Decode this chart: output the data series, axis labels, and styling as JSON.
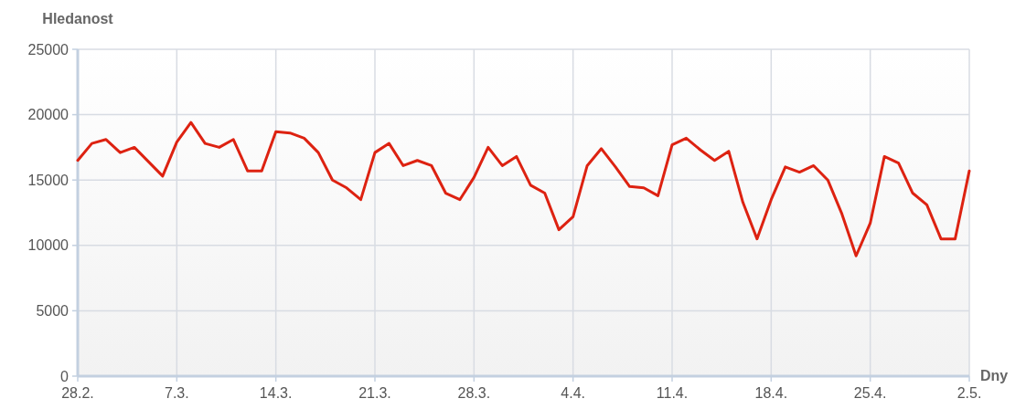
{
  "chart_data": {
    "type": "line",
    "ylabel": "Hledanost",
    "xlabel": "Dny",
    "categories": [
      "28.2.",
      null,
      null,
      null,
      null,
      null,
      null,
      "7.3.",
      null,
      null,
      null,
      null,
      null,
      null,
      "14.3.",
      null,
      null,
      null,
      null,
      null,
      null,
      "21.3.",
      null,
      null,
      null,
      null,
      null,
      null,
      "28.3.",
      null,
      null,
      null,
      null,
      null,
      null,
      "4.4.",
      null,
      null,
      null,
      null,
      null,
      null,
      "11.4.",
      null,
      null,
      null,
      null,
      null,
      null,
      "18.4.",
      null,
      null,
      null,
      null,
      null,
      null,
      "25.4.",
      null,
      null,
      null,
      null,
      null,
      null,
      "2.5."
    ],
    "series": [
      {
        "color": "#dd2211",
        "values": [
          16500,
          17800,
          18100,
          17100,
          17500,
          16400,
          15300,
          17900,
          19400,
          17800,
          17500,
          18100,
          15700,
          15700,
          18700,
          18600,
          18200,
          17100,
          15000,
          14400,
          13500,
          17100,
          17800,
          16100,
          16500,
          16100,
          14000,
          13500,
          15200,
          17500,
          16100,
          16800,
          14600,
          14000,
          11200,
          12200,
          16100,
          17400,
          16000,
          14500,
          14400,
          13800,
          17700,
          18200,
          17300,
          16500,
          17200,
          13300,
          10500,
          13500,
          16000,
          15600,
          16100,
          15000,
          12400,
          9200,
          11700,
          16800,
          16300,
          14000,
          13100,
          10500,
          10500,
          15700
        ]
      }
    ],
    "ylim": [
      0,
      25000
    ],
    "yticks": [
      0,
      5000,
      10000,
      15000,
      20000,
      25000
    ],
    "grid": true,
    "marker": "none",
    "line_style": "solid"
  }
}
